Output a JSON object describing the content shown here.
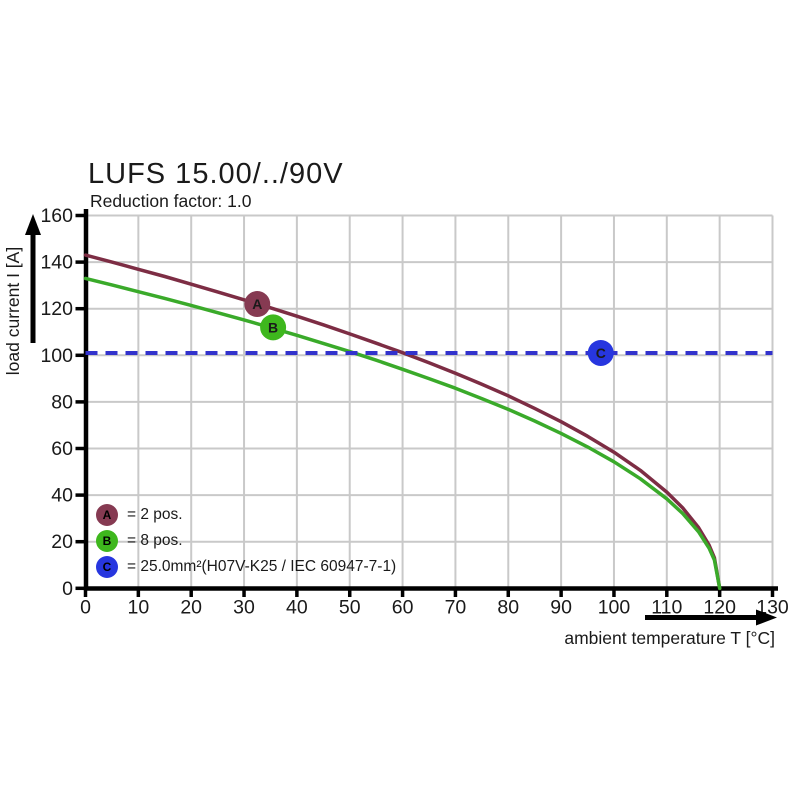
{
  "header": {
    "title": "LUFS 15.00/../90V",
    "subtitle": "Reduction factor: 1.0"
  },
  "legend": {
    "items": [
      {
        "letter": "A",
        "text": "= 2 pos.",
        "color": "#863a52"
      },
      {
        "letter": "B",
        "text": "= 8 pos.",
        "color": "#3eb71d"
      },
      {
        "letter": "C",
        "text": "= 25.0mm²(H07V-K25 / IEC 60947-7-1)",
        "color": "#2736df"
      }
    ]
  },
  "chart_data": {
    "type": "line",
    "title": "LUFS 15.00/../90V",
    "subtitle": "Reduction factor: 1.0",
    "xlabel": "ambient temperature T [°C]",
    "ylabel": "load current I [A]",
    "xlim": [
      0,
      130
    ],
    "ylim": [
      0,
      160
    ],
    "x_ticks": [
      0,
      10,
      20,
      30,
      40,
      50,
      60,
      70,
      80,
      90,
      100,
      110,
      120,
      130
    ],
    "y_ticks": [
      0,
      20,
      40,
      60,
      80,
      100,
      120,
      140,
      160
    ],
    "grid": true,
    "grid_color": "#c9c9c9",
    "series": [
      {
        "name": "A",
        "description": "2 pos.",
        "color": "#7d2d44",
        "points": [
          [
            0,
            143
          ],
          [
            5,
            140
          ],
          [
            10,
            136.9
          ],
          [
            15,
            133.8
          ],
          [
            20,
            130.5
          ],
          [
            25,
            127.2
          ],
          [
            30,
            123.8
          ],
          [
            35,
            120.4
          ],
          [
            40,
            116.8
          ],
          [
            45,
            113.1
          ],
          [
            50,
            109.2
          ],
          [
            55,
            105.2
          ],
          [
            60,
            101.1
          ],
          [
            65,
            96.8
          ],
          [
            70,
            92.3
          ],
          [
            75,
            87.6
          ],
          [
            80,
            82.6
          ],
          [
            85,
            77.2
          ],
          [
            90,
            71.5
          ],
          [
            95,
            65.3
          ],
          [
            100,
            58.4
          ],
          [
            105,
            50.6
          ],
          [
            110,
            41.3
          ],
          [
            113,
            34.5
          ],
          [
            116,
            26.1
          ],
          [
            118,
            18.5
          ],
          [
            119,
            13.1
          ],
          [
            120,
            0
          ]
        ]
      },
      {
        "name": "B",
        "description": "8 pos.",
        "color": "#3aaa2a",
        "points": [
          [
            0,
            133
          ],
          [
            5,
            130.2
          ],
          [
            10,
            127.3
          ],
          [
            15,
            124.4
          ],
          [
            20,
            121.4
          ],
          [
            25,
            118.3
          ],
          [
            30,
            115.2
          ],
          [
            35,
            111.9
          ],
          [
            40,
            108.6
          ],
          [
            45,
            105.1
          ],
          [
            50,
            101.6
          ],
          [
            55,
            97.9
          ],
          [
            60,
            94.0
          ],
          [
            65,
            90.0
          ],
          [
            70,
            85.9
          ],
          [
            75,
            81.4
          ],
          [
            80,
            76.8
          ],
          [
            85,
            71.8
          ],
          [
            90,
            66.5
          ],
          [
            95,
            60.7
          ],
          [
            100,
            54.3
          ],
          [
            105,
            47.0
          ],
          [
            110,
            38.4
          ],
          [
            113,
            32.1
          ],
          [
            116,
            24.3
          ],
          [
            118,
            17.2
          ],
          [
            119,
            12.1
          ],
          [
            120,
            0
          ]
        ]
      }
    ],
    "reference_line": {
      "name": "C",
      "description": "25.0mm²(H07V-K25 / IEC 60947-7-1)",
      "value": 101,
      "color": "#3232cc",
      "style": "dashed"
    },
    "markers": [
      {
        "letter": "A",
        "T": 32.5,
        "I": 122,
        "color": "#863a52"
      },
      {
        "letter": "B",
        "T": 35.5,
        "I": 112,
        "color": "#3eb71d"
      },
      {
        "letter": "C",
        "T": 97.5,
        "I": 101,
        "color": "#2736df"
      }
    ]
  }
}
